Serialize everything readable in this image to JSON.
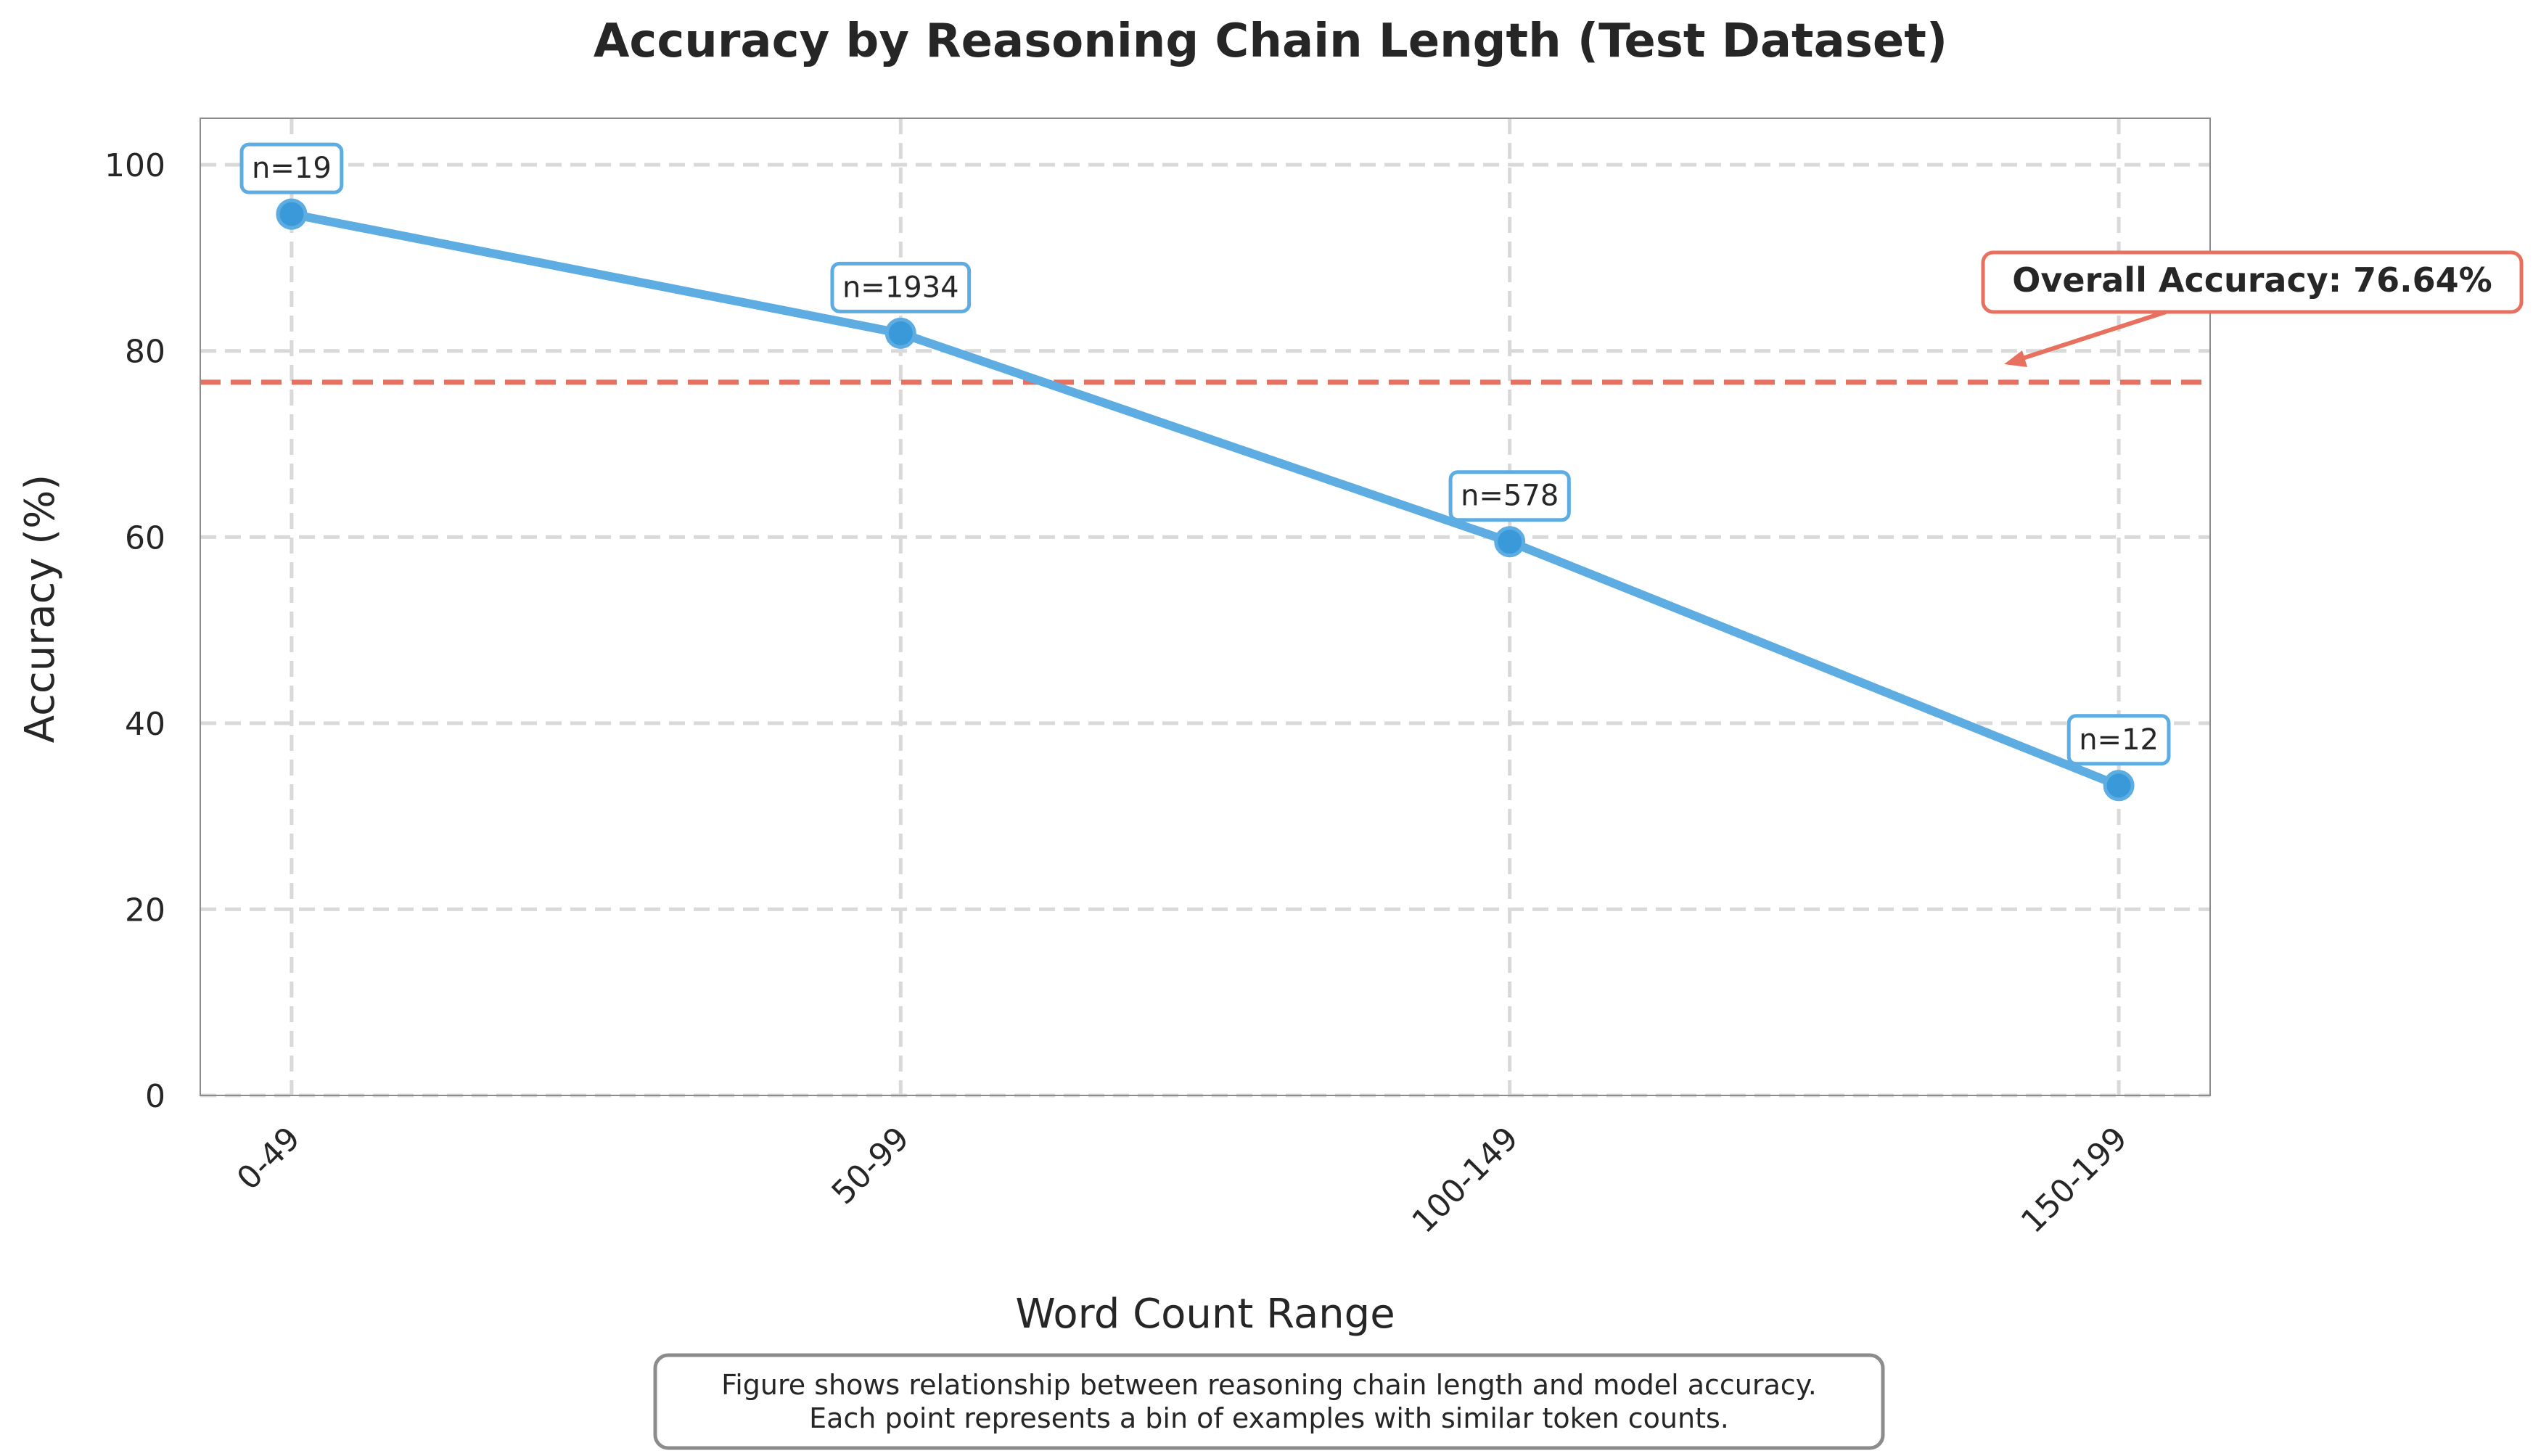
{
  "chart_data": {
    "type": "line",
    "title": "Accuracy by Reasoning Chain Length (Test Dataset)",
    "xlabel": "Word Count Range",
    "ylabel": "Accuracy (%)",
    "categories": [
      "0-49",
      "50-99",
      "100-149",
      "150-199"
    ],
    "series": [
      {
        "values": [
          94.7,
          81.9,
          59.5,
          33.3
        ],
        "counts": [
          "n=19",
          "n=1934",
          "n=578",
          "n=12"
        ]
      }
    ],
    "ylim": [
      0,
      105
    ],
    "yticks": [
      0,
      20,
      40,
      60,
      80,
      100
    ],
    "grid": true,
    "reference_line": {
      "value": 76.64,
      "label": "Overall Accuracy: 76.64%"
    },
    "caption": [
      "Figure shows relationship between reasoning chain length and model accuracy.",
      "Each point represents a bin of examples with similar token counts."
    ],
    "colors": {
      "series": "#5DADE2",
      "marker": "#3A9AD9",
      "reference": "#E8705F",
      "grid": "#D9D9D9",
      "caption_border": "#8C8C8C"
    }
  }
}
